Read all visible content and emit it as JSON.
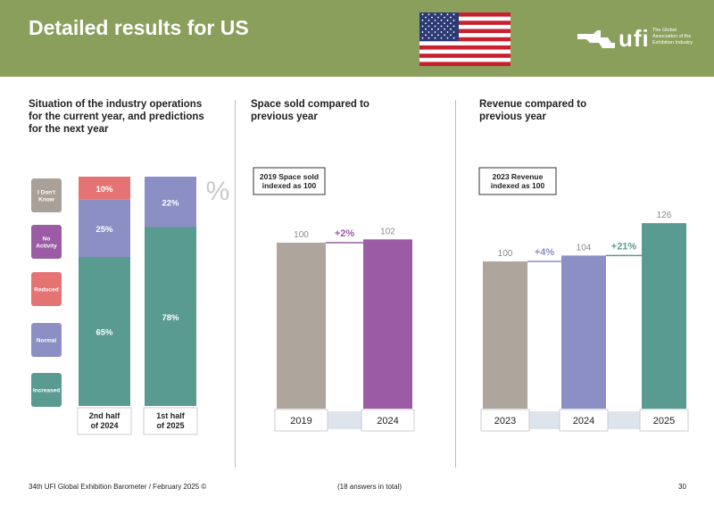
{
  "header": {
    "title": "Detailed results for US"
  },
  "logo": {
    "brand": "ufi",
    "tagline_lines": [
      "The Global",
      "Association of the",
      "Exhibition Industry"
    ]
  },
  "sections": {
    "operations": {
      "title_lines": [
        "Situation of the industry operations",
        "for the current year, and predictions",
        "for the next year"
      ]
    },
    "space": {
      "title_lines": [
        "Space sold compared to",
        "previous year"
      ]
    },
    "revenue": {
      "title_lines": [
        "Revenue compared to",
        "previous year"
      ]
    }
  },
  "chart_data": [
    {
      "type": "bar",
      "stacked": true,
      "unit_label": "%",
      "categories": [
        "2nd half of 2024",
        "1st half of 2025"
      ],
      "category_label_lines": [
        [
          "2nd half",
          "of 2024"
        ],
        [
          "1st half",
          "of 2025"
        ]
      ],
      "legend": [
        {
          "name": "I Don't Know",
          "lines": [
            "I Don't",
            "Know"
          ],
          "color": "#a9a097"
        },
        {
          "name": "No Activity",
          "lines": [
            "No",
            "Activity"
          ],
          "color": "#9b5ba5"
        },
        {
          "name": "Reduced",
          "lines": [
            "Reduced"
          ],
          "color": "#e57373"
        },
        {
          "name": "Normal",
          "lines": [
            "Normal"
          ],
          "color": "#8b8fc4"
        },
        {
          "name": "Increased",
          "lines": [
            "Increased"
          ],
          "color": "#5a9b91"
        }
      ],
      "series": [
        {
          "name": "Increased",
          "values": [
            65,
            78
          ]
        },
        {
          "name": "Normal",
          "values": [
            25,
            22
          ]
        },
        {
          "name": "Reduced",
          "values": [
            10,
            0
          ]
        }
      ],
      "value_labels": [
        [
          "65%",
          "25%",
          "10%"
        ],
        [
          "78%",
          "22%",
          ""
        ]
      ],
      "ylim": [
        0,
        100
      ]
    },
    {
      "type": "bar",
      "note_lines": [
        "2019 Space sold",
        "indexed as 100"
      ],
      "categories": [
        "2019",
        "2024"
      ],
      "values": [
        100,
        102
      ],
      "colors": [
        "#aea59c",
        "#9b5ba5"
      ],
      "changes": [
        {
          "label": "+2%",
          "color": "#9b5ba5"
        }
      ]
    },
    {
      "type": "bar",
      "note_lines": [
        "2023 Revenue",
        "indexed as 100"
      ],
      "categories": [
        "2023",
        "2024",
        "2025"
      ],
      "values": [
        100,
        104,
        126
      ],
      "colors": [
        "#aea59c",
        "#8b8fc4",
        "#5a9b91"
      ],
      "changes": [
        {
          "label": "+4%",
          "color": "#8b8fc4"
        },
        {
          "label": "+21%",
          "color": "#5a9b91"
        }
      ]
    }
  ],
  "footer": {
    "left": "34th UFI Global Exhibition Barometer / February 2025 ©",
    "center": "(18 answers in total)",
    "page": "30"
  }
}
